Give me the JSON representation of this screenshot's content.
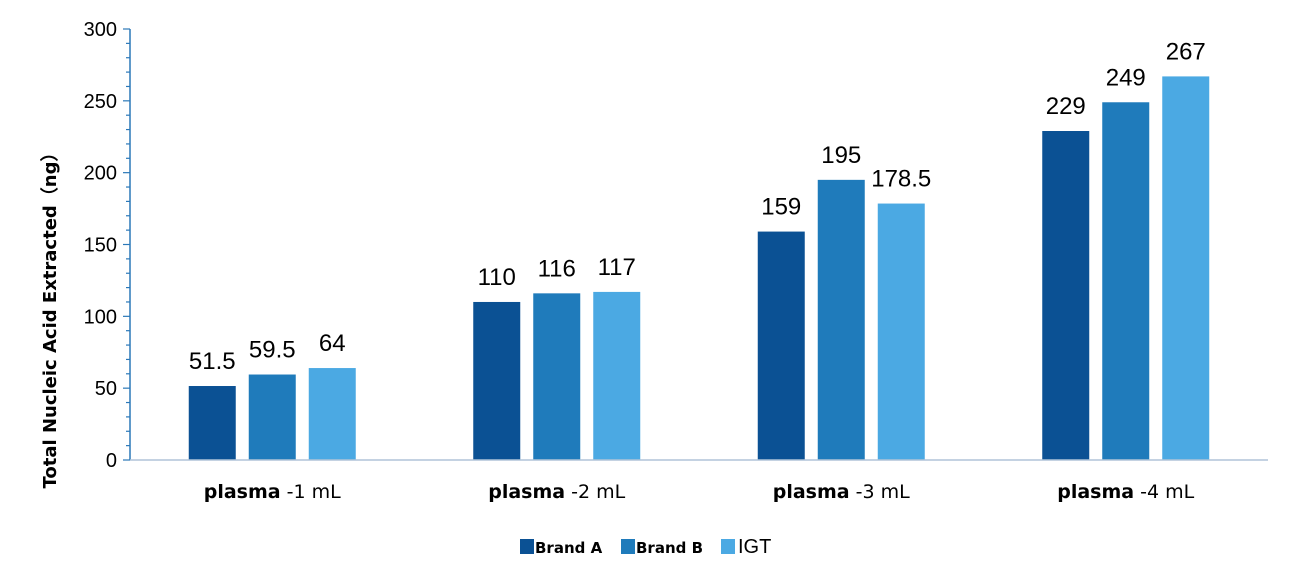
{
  "chart_data": {
    "type": "bar",
    "categories": [
      {
        "bold": "plasma",
        "rest": "-1 mL"
      },
      {
        "bold": "plasma",
        "rest": "-2 mL"
      },
      {
        "bold": "plasma",
        "rest": "-3 mL"
      },
      {
        "bold": "plasma",
        "rest": "-4 mL"
      }
    ],
    "series": [
      {
        "name": "Brand A",
        "color": "#0b5194",
        "values": [
          51.5,
          110,
          159,
          229
        ]
      },
      {
        "name": "Brand B",
        "color": "#1f7bbb",
        "values": [
          59.5,
          116,
          195,
          249
        ]
      },
      {
        "name": "IGT",
        "color": "#4ba9e3",
        "values": [
          64,
          117,
          178.5,
          267
        ]
      }
    ],
    "value_labels": [
      [
        "51.5",
        "110",
        "159",
        "229"
      ],
      [
        "59.5",
        "116",
        "195",
        "249"
      ],
      [
        "64",
        "117",
        "178.5",
        "267"
      ]
    ],
    "ylabel": "Total Nucleic Acid Extracted（ng）",
    "xlabel": "",
    "title": "",
    "ylim": [
      0,
      300
    ],
    "yticks": [
      0,
      50,
      100,
      150,
      200,
      250,
      300
    ],
    "grid": false,
    "legend": "bottom-center"
  }
}
